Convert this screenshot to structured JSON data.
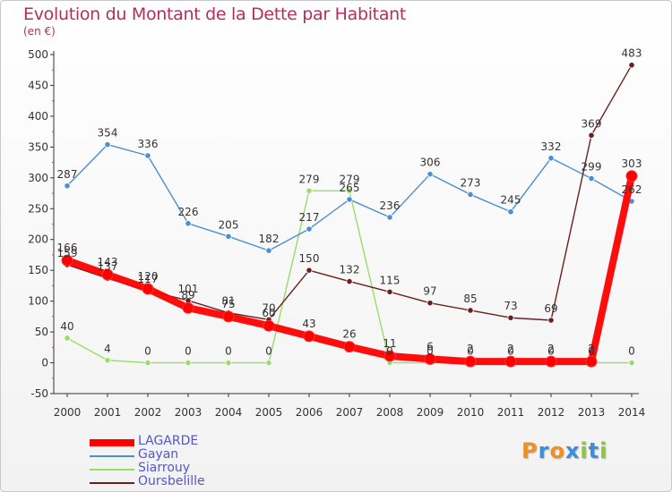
{
  "chart_data": {
    "type": "line",
    "title": "Evolution du Montant de la Dette par Habitant",
    "subtitle": "(en €)",
    "x": [
      "2000",
      "2001",
      "2002",
      "2003",
      "2004",
      "2005",
      "2006",
      "2007",
      "2008",
      "2009",
      "2010",
      "2011",
      "2012",
      "2013",
      "2014"
    ],
    "ylim": [
      -50,
      500
    ],
    "yticks": [
      "-50",
      "0",
      "50",
      "100",
      "150",
      "200",
      "250",
      "300",
      "350",
      "400",
      "450",
      "500"
    ],
    "grid": false,
    "legend_position": "bottom-left",
    "series": [
      {
        "name": "LAGARDE",
        "color": "#ff0000",
        "values": [
          166,
          143,
          120,
          89,
          75,
          60,
          43,
          26,
          11,
          6,
          2,
          2,
          2,
          2,
          303
        ]
      },
      {
        "name": "Gayan",
        "color": "#4a8fd0",
        "values": [
          287,
          354,
          336,
          226,
          205,
          182,
          217,
          265,
          236,
          306,
          273,
          245,
          332,
          299,
          262
        ]
      },
      {
        "name": "Siarrouy",
        "color": "#99dd66",
        "values": [
          40,
          4,
          0,
          0,
          0,
          0,
          279,
          279,
          0,
          0,
          0,
          0,
          0,
          0,
          0
        ]
      },
      {
        "name": "Oursbelille",
        "color": "#6b1f1f",
        "values": [
          159,
          137,
          117,
          101,
          81,
          70,
          150,
          132,
          115,
          97,
          85,
          73,
          69,
          369,
          483
        ]
      }
    ],
    "data_labels": {
      "LAGARDE": [
        "166",
        "143",
        "120",
        "89",
        "75",
        "60",
        "43",
        "26",
        "11",
        "6",
        "2",
        "2",
        "2",
        "2",
        "303"
      ],
      "Gayan": [
        "287",
        "354",
        "336",
        "226",
        "205",
        "182",
        "217",
        "265",
        "236",
        "306",
        "273",
        "245",
        "332",
        "299",
        "262"
      ],
      "Siarrouy": [
        "40",
        "4",
        "0",
        "0",
        "0",
        "0",
        "279",
        "279",
        "0",
        "0",
        "0",
        "0",
        "0",
        "0",
        "0"
      ],
      "Oursbelille": [
        "159",
        "137",
        "117",
        "101",
        "81",
        "70",
        "150",
        "132",
        "115",
        "97",
        "85",
        "73",
        "69",
        "369",
        "483"
      ]
    }
  },
  "logo": {
    "text": "Proxiti",
    "letters": [
      "P",
      "r",
      "o",
      "x",
      "i",
      "t",
      "i"
    ],
    "colors": [
      "#f09020",
      "#3a8fd8",
      "#f09020",
      "#3a8fd8",
      "#8cc63f",
      "#3a8fd8",
      "#8cc63f"
    ]
  }
}
